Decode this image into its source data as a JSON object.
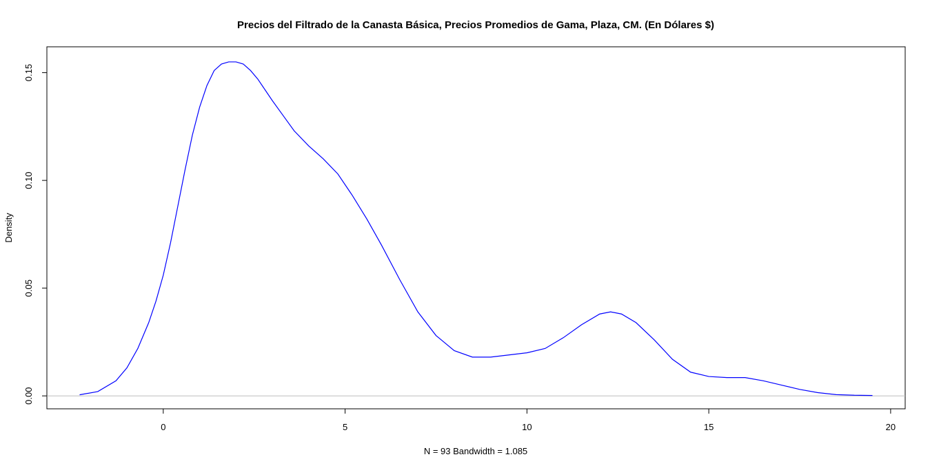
{
  "chart_data": {
    "type": "line",
    "title": "Precios del Filtrado de la Canasta Básica, Precios Promedios de Gama, Plaza, CM. (En Dólares $)",
    "xlabel": "N = 93   Bandwidth = 1.085",
    "ylabel": "Density",
    "xlim": [
      -3.2,
      20.4
    ],
    "ylim": [
      -0.006,
      0.162
    ],
    "x_ticks": [
      0,
      5,
      10,
      15,
      20
    ],
    "x_tick_labels": [
      "0",
      "5",
      "10",
      "15",
      "20"
    ],
    "y_ticks": [
      0.0,
      0.05,
      0.1,
      0.15
    ],
    "y_tick_labels": [
      "0.00",
      "0.05",
      "0.10",
      "0.15"
    ],
    "grid": false,
    "baseline": 0,
    "baseline_color": "#bebebe",
    "line_color": "#0000ff",
    "series": [
      {
        "x": [
          -2.3,
          -1.8,
          -1.3,
          -1.0,
          -0.7,
          -0.4,
          -0.2,
          0.0,
          0.2,
          0.4,
          0.6,
          0.8,
          1.0,
          1.2,
          1.4,
          1.6,
          1.8,
          2.0,
          2.2,
          2.4,
          2.6,
          2.8,
          3.0,
          3.3,
          3.6,
          4.0,
          4.4,
          4.8,
          5.2,
          5.6,
          6.0,
          6.5,
          7.0,
          7.5,
          8.0,
          8.5,
          9.0,
          9.5,
          10.0,
          10.5,
          11.0,
          11.5,
          12.0,
          12.3,
          12.6,
          13.0,
          13.5,
          14.0,
          14.5,
          15.0,
          15.5,
          16.0,
          16.5,
          17.0,
          17.5,
          18.0,
          18.5,
          19.0,
          19.5
        ],
        "y": [
          0.0005,
          0.002,
          0.007,
          0.013,
          0.022,
          0.034,
          0.044,
          0.056,
          0.071,
          0.088,
          0.105,
          0.121,
          0.134,
          0.144,
          0.151,
          0.154,
          0.155,
          0.155,
          0.154,
          0.151,
          0.147,
          0.142,
          0.137,
          0.13,
          0.123,
          0.116,
          0.11,
          0.103,
          0.093,
          0.082,
          0.07,
          0.054,
          0.039,
          0.028,
          0.021,
          0.018,
          0.018,
          0.019,
          0.02,
          0.022,
          0.027,
          0.033,
          0.038,
          0.039,
          0.038,
          0.034,
          0.026,
          0.017,
          0.011,
          0.009,
          0.0085,
          0.0085,
          0.007,
          0.005,
          0.003,
          0.0015,
          0.0006,
          0.0003,
          0.0002
        ]
      }
    ]
  }
}
